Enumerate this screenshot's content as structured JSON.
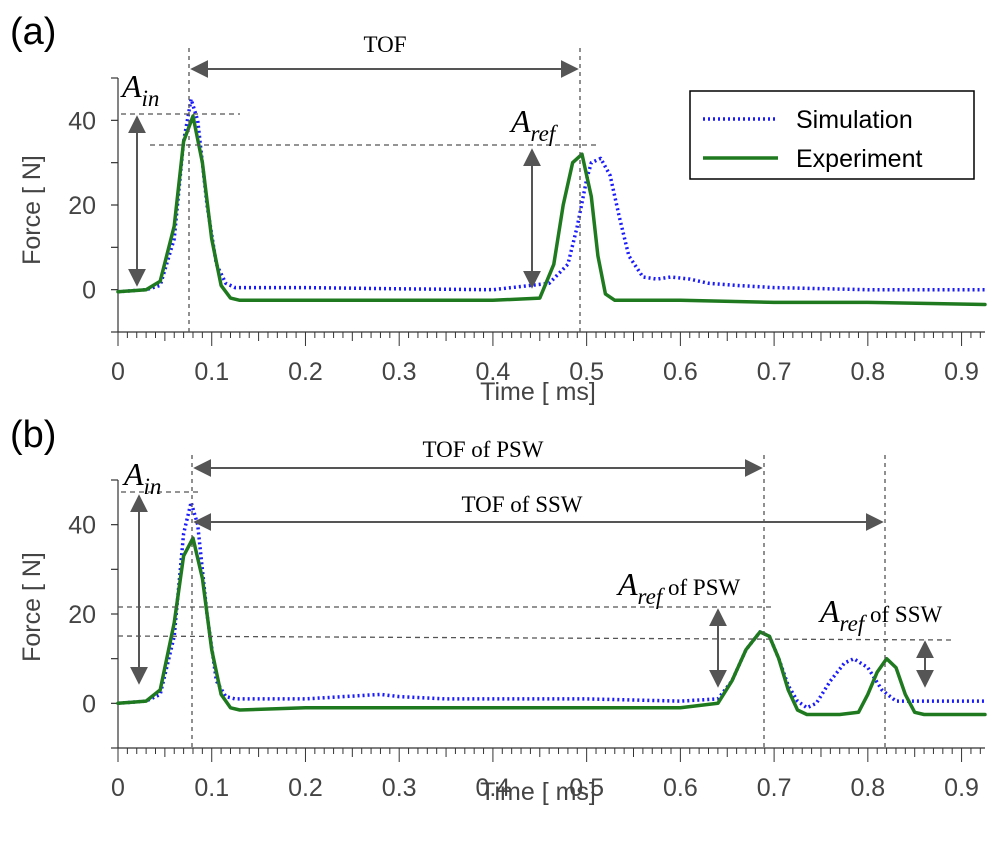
{
  "figure": {
    "panels": [
      {
        "id": "a",
        "label": "(a)",
        "annotations": {
          "tof": "TOF",
          "a_in_main": "A",
          "a_in_sub": "in",
          "a_ref_main": "A",
          "a_ref_sub": "ref"
        }
      },
      {
        "id": "b",
        "label": "(b)",
        "annotations": {
          "tof_psw": "TOF of PSW",
          "tof_ssw": "TOF of SSW",
          "a_in_main": "A",
          "a_in_sub": "in",
          "a_ref_psw_main": "A",
          "a_ref_psw_sub": "ref",
          "a_ref_psw_suffix": " of PSW",
          "a_ref_ssw_main": "A",
          "a_ref_ssw_sub": "ref",
          "a_ref_ssw_suffix": " of SSW"
        }
      }
    ],
    "legend": {
      "items": [
        {
          "label": "Simulation",
          "color": "#1a1aff",
          "style": "dotted"
        },
        {
          "label": "Experiment",
          "color": "#1f7a1f",
          "style": "solid"
        }
      ]
    },
    "colors": {
      "simulation": "#1a1aff",
      "experiment": "#1f7a1f",
      "annotation": "#555555"
    }
  },
  "chart_data": [
    {
      "type": "line",
      "panel": "(a)",
      "xlabel": "Time [ ms]",
      "ylabel": "Force [ N]",
      "xlim": [
        0,
        0.925
      ],
      "ylim": [
        -10,
        50
      ],
      "xticks": [
        0,
        0.1,
        0.2,
        0.3,
        0.4,
        0.5,
        0.6,
        0.7,
        0.8,
        0.9
      ],
      "xticklabels": [
        "0",
        "0.1",
        "0.2",
        "0.3",
        "0.4",
        "0.5",
        "0.6",
        "0.7",
        "0.8",
        "0.9"
      ],
      "yticks": [
        0,
        20,
        40
      ],
      "yticklabels": [
        "0",
        "20",
        "40"
      ],
      "legend": "top-right",
      "series": [
        {
          "name": "Simulation",
          "x": [
            0,
            0.03,
            0.045,
            0.06,
            0.07,
            0.078,
            0.085,
            0.095,
            0.105,
            0.115,
            0.125,
            0.2,
            0.3,
            0.4,
            0.46,
            0.48,
            0.49,
            0.5,
            0.505,
            0.515,
            0.525,
            0.535,
            0.545,
            0.56,
            0.575,
            0.59,
            0.61,
            0.63,
            0.66,
            0.7,
            0.8,
            0.925
          ],
          "y": [
            -0.5,
            0,
            1,
            12,
            35,
            45,
            40,
            20,
            6,
            1.5,
            0.5,
            0.5,
            0.2,
            0,
            1.5,
            6,
            15,
            26,
            30,
            31,
            27,
            17,
            8,
            3,
            2.5,
            3,
            2.5,
            1.5,
            1,
            0.5,
            0,
            0
          ]
        },
        {
          "name": "Experiment",
          "x": [
            0,
            0.03,
            0.045,
            0.06,
            0.07,
            0.08,
            0.09,
            0.1,
            0.11,
            0.12,
            0.13,
            0.2,
            0.3,
            0.4,
            0.45,
            0.465,
            0.475,
            0.485,
            0.495,
            0.505,
            0.512,
            0.52,
            0.53,
            0.6,
            0.7,
            0.8,
            0.925
          ],
          "y": [
            -0.5,
            0,
            2,
            15,
            35,
            41,
            30,
            12,
            1,
            -2,
            -2.5,
            -2.5,
            -2.5,
            -2.5,
            -2,
            6,
            20,
            30,
            32,
            22,
            8,
            -1,
            -2.5,
            -2.5,
            -3,
            -3,
            -3.5
          ]
        }
      ]
    },
    {
      "type": "line",
      "panel": "(b)",
      "xlabel": "Time [ ms]",
      "ylabel": "Force [ N]",
      "xlim": [
        0,
        0.925
      ],
      "ylim": [
        -10,
        50
      ],
      "xticks": [
        0,
        0.1,
        0.2,
        0.3,
        0.4,
        0.5,
        0.6,
        0.7,
        0.8,
        0.9
      ],
      "xticklabels": [
        "0",
        "0.1",
        "0.2",
        "0.3",
        "0.4",
        "0.5",
        "0.6",
        "0.7",
        "0.8",
        "0.9"
      ],
      "yticks": [
        0,
        20,
        40
      ],
      "yticklabels": [
        "0",
        "20",
        "40"
      ],
      "series": [
        {
          "name": "Simulation",
          "x": [
            0,
            0.03,
            0.045,
            0.06,
            0.07,
            0.078,
            0.085,
            0.095,
            0.105,
            0.115,
            0.125,
            0.2,
            0.28,
            0.3,
            0.35,
            0.4,
            0.5,
            0.6,
            0.64,
            0.655,
            0.67,
            0.685,
            0.695,
            0.705,
            0.715,
            0.725,
            0.735,
            0.745,
            0.76,
            0.775,
            0.785,
            0.8,
            0.815,
            0.83,
            0.84,
            0.86,
            0.925
          ],
          "y": [
            0,
            0.5,
            2,
            15,
            38,
            45,
            40,
            20,
            5,
            1.5,
            1,
            1,
            2,
            1.5,
            1,
            1,
            1,
            0.5,
            1,
            5,
            12,
            16,
            15,
            10,
            4,
            0.5,
            -1,
            0,
            5,
            9,
            10,
            8,
            3,
            0.5,
            0.5,
            0.5,
            0.5
          ]
        },
        {
          "name": "Experiment",
          "x": [
            0,
            0.03,
            0.045,
            0.06,
            0.07,
            0.08,
            0.09,
            0.1,
            0.11,
            0.12,
            0.13,
            0.2,
            0.3,
            0.4,
            0.5,
            0.6,
            0.64,
            0.655,
            0.67,
            0.685,
            0.695,
            0.705,
            0.715,
            0.725,
            0.735,
            0.745,
            0.755,
            0.77,
            0.79,
            0.8,
            0.81,
            0.82,
            0.83,
            0.84,
            0.85,
            0.86,
            0.925
          ],
          "y": [
            0,
            0.5,
            3,
            18,
            33,
            37,
            28,
            12,
            2,
            -1,
            -1.5,
            -1,
            -1,
            -1,
            -1,
            -1,
            0,
            5,
            12,
            16,
            15,
            10,
            3,
            -1.5,
            -2.5,
            -2.5,
            -2.5,
            -2.5,
            -2,
            2,
            7,
            10,
            8,
            2,
            -2,
            -2.5,
            -2.5
          ]
        }
      ]
    }
  ]
}
